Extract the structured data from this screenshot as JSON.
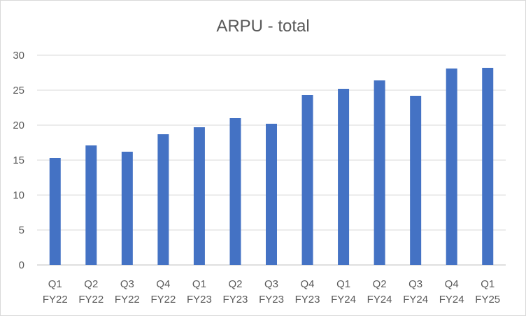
{
  "chart_data": {
    "type": "bar",
    "title": "ARPU - total",
    "xlabel": "",
    "ylabel": "",
    "categories": [
      [
        "Q1",
        "FY22"
      ],
      [
        "Q2",
        "FY22"
      ],
      [
        "Q3",
        "FY22"
      ],
      [
        "Q4",
        "FY22"
      ],
      [
        "Q1",
        "FY23"
      ],
      [
        "Q2",
        "FY23"
      ],
      [
        "Q3",
        "FY23"
      ],
      [
        "Q4",
        "FY23"
      ],
      [
        "Q1",
        "FY24"
      ],
      [
        "Q2",
        "FY24"
      ],
      [
        "Q3",
        "FY24"
      ],
      [
        "Q4",
        "FY24"
      ],
      [
        "Q1",
        "FY25"
      ]
    ],
    "values": [
      15.3,
      17.1,
      16.2,
      18.7,
      19.7,
      21.0,
      20.2,
      24.3,
      25.2,
      26.4,
      24.2,
      28.1,
      28.2
    ],
    "ylim": [
      0,
      30
    ],
    "yticks": [
      "0",
      "5",
      "10",
      "15",
      "20",
      "25",
      "30"
    ],
    "grid": true,
    "legend": "none",
    "bar_color": "#4472c4"
  }
}
